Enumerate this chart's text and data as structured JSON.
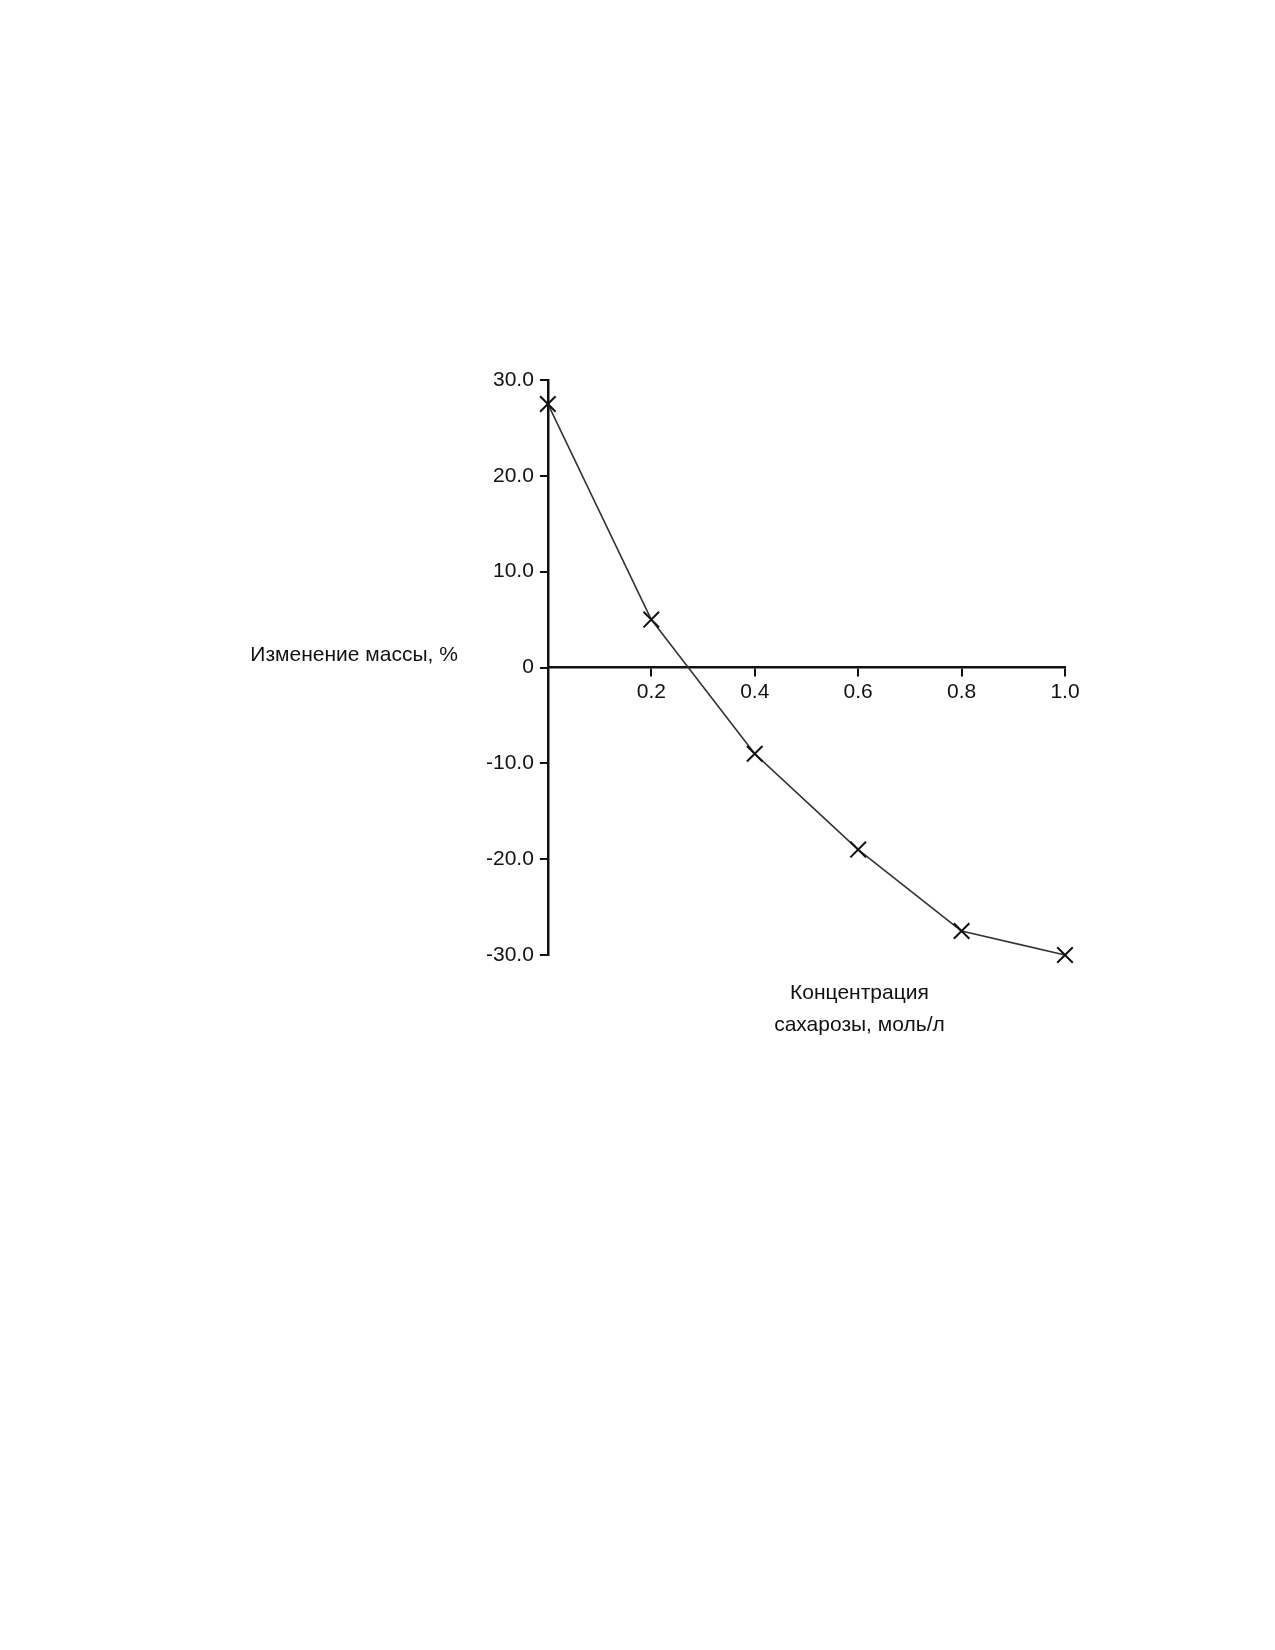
{
  "chart_data": {
    "type": "line",
    "xlabel": "Концентрация сахарозы, моль/л",
    "ylabel": "Изменение массы, %",
    "x": [
      0,
      0.2,
      0.4,
      0.6,
      0.8,
      1.0
    ],
    "series": [
      {
        "color": "#333333",
        "values": [
          27.5,
          5,
          -9,
          -19,
          -27.5,
          -30
        ]
      }
    ],
    "xlim": [
      0,
      1.0
    ],
    "xticks": [
      0.2,
      0.4,
      0.6,
      0.8,
      {
        "value": 1.0,
        "label": "1.0"
      }
    ],
    "ylim": [
      -30,
      30
    ],
    "yticks": [
      {
        "value": -30,
        "label": "-30.0"
      },
      {
        "value": -20,
        "label": "-20.0"
      },
      {
        "value": -10,
        "label": "-10.0"
      },
      0,
      {
        "value": 10,
        "label": "10.0"
      },
      {
        "value": 20,
        "label": "20.0"
      },
      {
        "value": 30,
        "label": "30.0"
      }
    ],
    "grid": false,
    "legend": false,
    "marker": "cross"
  }
}
